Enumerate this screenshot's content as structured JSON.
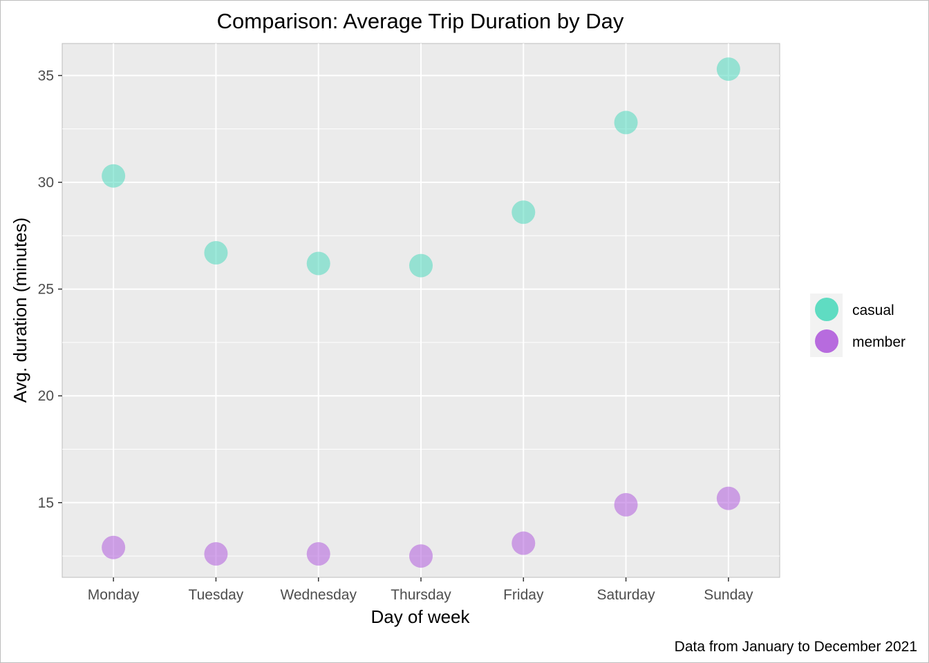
{
  "chart_data": {
    "type": "scatter",
    "title": "Comparison: Average Trip Duration by Day",
    "xlabel": "Day of week",
    "ylabel": "Avg. duration (minutes)",
    "caption": "Data from January to December 2021",
    "categories": [
      "Monday",
      "Tuesday",
      "Wednesday",
      "Thursday",
      "Friday",
      "Saturday",
      "Sunday"
    ],
    "ylim": [
      11.5,
      36.5
    ],
    "yticks": [
      15,
      20,
      25,
      30,
      35
    ],
    "grid": true,
    "legend_position": "right",
    "series": [
      {
        "name": "casual",
        "color": "#4fd9bd",
        "values": [
          30.3,
          26.7,
          26.2,
          26.1,
          28.6,
          32.8,
          35.3
        ]
      },
      {
        "name": "member",
        "color": "#b05cdc",
        "values": [
          12.9,
          12.6,
          12.6,
          12.5,
          13.1,
          14.9,
          15.2
        ]
      }
    ]
  }
}
